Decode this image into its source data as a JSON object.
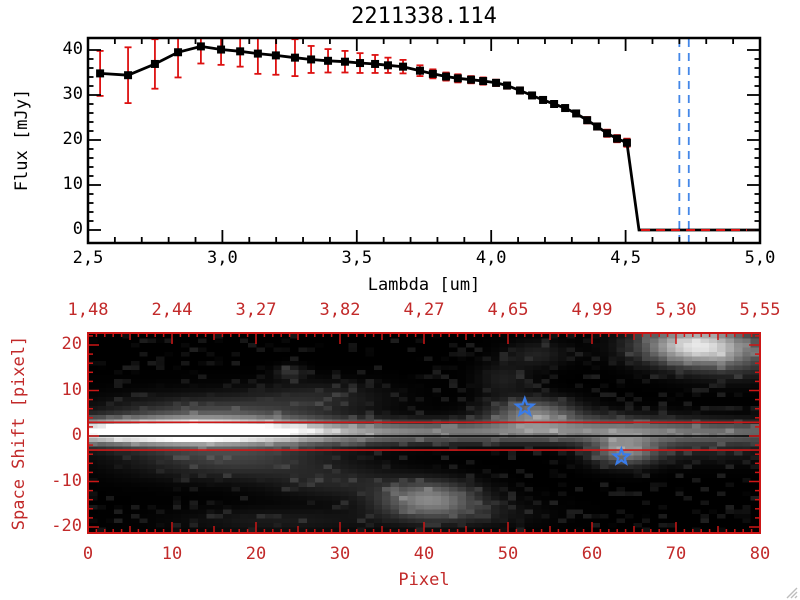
{
  "title": "2211338.114",
  "colors": {
    "background": "#ffffff",
    "axis_black": "#000000",
    "axis_red": "#c22a2a",
    "line_red": "#cc1616",
    "error_red": "#dd1111",
    "dash_blue": "#4387e8",
    "star_blue": "#3a7ce8",
    "image_bg": "#000000",
    "grip_gray": "#bdbdbd"
  },
  "spectrum_plot": {
    "title": "2211338.114",
    "xlabel": "Lambda [um]",
    "ylabel": "Flux [mJy]",
    "x_tick_labels": [
      "2,5",
      "3,0",
      "3,5",
      "4,0",
      "4,5",
      "5,0"
    ],
    "x_tick_values": [
      2.5,
      3.0,
      3.5,
      4.0,
      4.5,
      5.0
    ],
    "y_tick_labels": [
      "0",
      "10",
      "20",
      "30",
      "40"
    ],
    "y_tick_values": [
      0,
      10,
      20,
      30,
      40
    ],
    "xlim": [
      2.5,
      5.0
    ],
    "ylim": [
      0,
      40
    ]
  },
  "image_plot": {
    "xlabel": "Pixel",
    "ylabel": "Space Shift [pixel]",
    "x_tick_labels": [
      "0",
      "10",
      "20",
      "30",
      "40",
      "50",
      "60",
      "70",
      "80"
    ],
    "x_tick_values": [
      0,
      10,
      20,
      30,
      40,
      50,
      60,
      70,
      80
    ],
    "y_tick_labels": [
      "20",
      "10",
      "0",
      "-10",
      "-20"
    ],
    "y_tick_values": [
      20,
      10,
      0,
      -10,
      -20
    ],
    "top_tick_labels": [
      "1,48",
      "2,44",
      "3,27",
      "3,82",
      "4,27",
      "4,65",
      "4,99",
      "5,30",
      "5,55"
    ],
    "top_tick_values": [
      1.48,
      2.44,
      3.27,
      3.82,
      4.27,
      4.65,
      4.99,
      5.3,
      5.55
    ],
    "xlim": [
      0,
      80
    ],
    "ylim": [
      -22,
      22
    ]
  },
  "chart_data": [
    {
      "type": "line",
      "title": "2211338.114",
      "xlabel": "Lambda [um]",
      "ylabel": "Flux [mJy]",
      "xlim": [
        2.5,
        5.0
      ],
      "ylim": [
        0,
        40
      ],
      "legend": null,
      "grid": false,
      "lambda": [
        2.545,
        2.649,
        2.749,
        2.835,
        2.92,
        2.995,
        3.066,
        3.132,
        3.199,
        3.27,
        3.33,
        3.393,
        3.456,
        3.512,
        3.568,
        3.616,
        3.672,
        3.735,
        3.783,
        3.832,
        3.876,
        3.925,
        3.97,
        4.018,
        4.059,
        4.107,
        4.152,
        4.193,
        4.234,
        4.275,
        4.316,
        4.357,
        4.394,
        4.431,
        4.468,
        4.505
      ],
      "flux": [
        34.8,
        34.4,
        36.9,
        39.5,
        40.8,
        40.1,
        39.7,
        39.2,
        38.8,
        38.3,
        37.9,
        37.6,
        37.4,
        37.1,
        36.9,
        36.6,
        36.3,
        35.4,
        34.7,
        34.1,
        33.7,
        33.4,
        33.1,
        32.7,
        32.1,
        31.0,
        29.9,
        28.9,
        28.0,
        27.1,
        25.9,
        24.4,
        23.0,
        21.5,
        20.3,
        19.4
      ],
      "err": [
        5.0,
        6.2,
        5.5,
        5.6,
        3.8,
        3.4,
        3.4,
        4.5,
        4.3,
        4.1,
        3.0,
        2.6,
        2.4,
        2.2,
        2.0,
        1.7,
        1.5,
        1.2,
        1.0,
        0.9,
        0.9,
        0.8,
        0.8,
        0.7,
        0.7,
        0.7,
        0.6,
        0.6,
        0.6,
        0.6,
        0.6,
        0.7,
        0.7,
        0.8,
        0.8,
        0.9
      ],
      "zero_from": 4.55,
      "zero_to": 5.0,
      "red_dashed_hline_y": 0,
      "blue_dashed_vlines": [
        4.7,
        4.735
      ]
    },
    {
      "type": "heatmap",
      "xlabel": "Pixel",
      "ylabel": "Space Shift [pixel]",
      "xlim": [
        0,
        80
      ],
      "ylim": [
        -22,
        22
      ],
      "top_axis_wavelengths": [
        1.48,
        2.44,
        3.27,
        3.82,
        4.27,
        4.65,
        4.99,
        5.3,
        5.55
      ],
      "grid_size": [
        80,
        44
      ],
      "aperture_lines_shift": [
        3.0,
        -3.1
      ],
      "zero_line_shift": 0,
      "stars": [
        [
          52,
          6.3,
          9
        ],
        [
          63.5,
          -4.6,
          8
        ]
      ],
      "blobs": [
        [
          10,
          0.3,
          12,
          1.9,
          0.9
        ],
        [
          45,
          0.2,
          60,
          1.7,
          0.45
        ],
        [
          13,
          0.5,
          10,
          4.5,
          0.15
        ],
        [
          15,
          4.5,
          8,
          2.6,
          0.18
        ],
        [
          27,
          8,
          5.5,
          2.4,
          0.13
        ],
        [
          17,
          -6,
          8,
          3.0,
          0.2
        ],
        [
          29,
          -11,
          5.5,
          2.6,
          0.13
        ],
        [
          40,
          -14.5,
          4,
          2.6,
          0.5
        ],
        [
          43,
          -18,
          6,
          2.2,
          0.14
        ],
        [
          22,
          -19.5,
          8,
          2.0,
          0.1
        ],
        [
          52.5,
          4.5,
          3.5,
          2.2,
          0.45
        ],
        [
          60,
          2.5,
          8,
          1.8,
          0.14
        ],
        [
          63.5,
          -4,
          2.8,
          2.2,
          0.5
        ],
        [
          72,
          19.5,
          4.5,
          2.8,
          0.85
        ],
        [
          77,
          16,
          5,
          3,
          0.2
        ],
        [
          73,
          -3.5,
          7,
          2.2,
          0.12
        ],
        [
          23.5,
          13.5,
          1.2,
          1.0,
          0.2
        ],
        [
          49,
          12,
          2.2,
          2.5,
          0.12
        ],
        [
          53,
          17.5,
          2.5,
          2.0,
          0.13
        ]
      ],
      "noise": {
        "threshold": 0.8,
        "amp": 0.12
      }
    }
  ]
}
